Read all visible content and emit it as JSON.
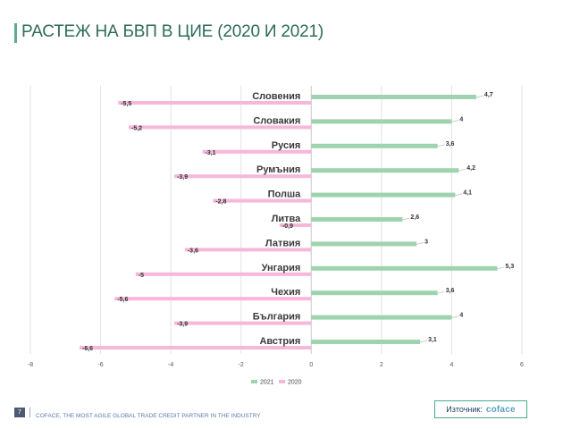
{
  "header": {
    "title": "РАСТЕЖ НА БВП В ЦИЕ (2020 И 2021)"
  },
  "footer": {
    "page_number": "7",
    "tagline": "COFACE, THE MOST AGILE GLOBAL TRADE CREDIT PARTNER IN THE INDUSTRY",
    "source_label": "Източник:",
    "source_logo": "coface"
  },
  "colors": {
    "series_2021": "#9fd3b0",
    "series_2020": "#f7b7d9",
    "title": "#2e6c5a",
    "accent": "#5cae8a"
  },
  "chart_data": {
    "type": "bar",
    "orientation": "horizontal",
    "categories": [
      "Словения",
      "Словакия",
      "Русия",
      "Румъния",
      "Полша",
      "Литва",
      "Латвия",
      "Унгария",
      "Чехия",
      "България",
      "Австрия"
    ],
    "series": [
      {
        "name": "2021",
        "values": [
          4.7,
          4,
          3.6,
          4.2,
          4.1,
          2.6,
          3,
          5.3,
          3.6,
          4,
          3.1
        ],
        "labels": [
          "4,7",
          "4",
          "3,6",
          "4,2",
          "4,1",
          "2,6",
          "3",
          "5,3",
          "3,6",
          "4",
          "3,1"
        ]
      },
      {
        "name": "2020",
        "values": [
          -5.5,
          -5.2,
          -3.1,
          -3.9,
          -2.8,
          -0.9,
          -3.6,
          -5,
          -5.6,
          -3.9,
          -6.6
        ],
        "labels": [
          "-5,5",
          "-5,2",
          "-3,1",
          "-3,9",
          "-2,8",
          "-0,9",
          "-3,6",
          "-5",
          "-5,6",
          "-3,9",
          "-6,6"
        ]
      }
    ],
    "xlim": [
      -8,
      6
    ],
    "xticks": [
      "-8",
      "-6",
      "-4",
      "-2",
      "0",
      "2",
      "4",
      "6"
    ],
    "grid": "vertical",
    "legend": "bottom-center"
  }
}
